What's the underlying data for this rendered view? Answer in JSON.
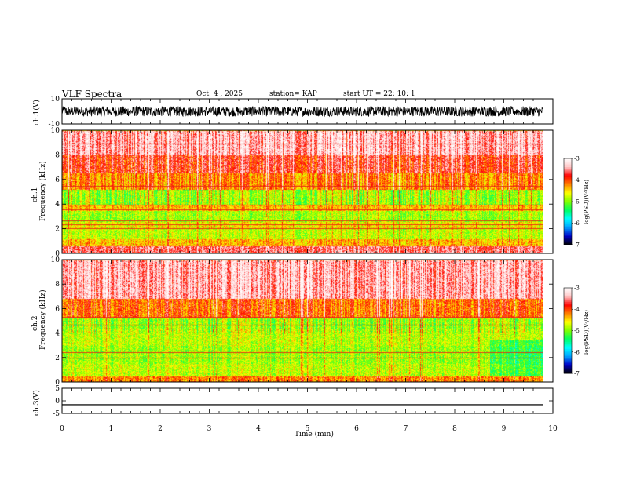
{
  "header": {
    "title": "VLF Spectra",
    "date": "Oct. 4 , 2025",
    "station": "station= KAP",
    "start": "start UT = 22: 10: 1"
  },
  "chart_data": {
    "type": "heatmap",
    "title": "VLF Spectra",
    "xlabel": "Time (min)",
    "xlim": [
      0,
      10
    ],
    "x_ticks": [
      "0",
      "1",
      "2",
      "3",
      "4",
      "5",
      "6",
      "7",
      "8",
      "9",
      "10"
    ],
    "data_end_min": 9.8,
    "panels": [
      {
        "name": "ch1-waveform",
        "type": "line",
        "ylabel": "ch.1(V)",
        "ylim": [
          -10,
          10
        ],
        "y_ticks": [
          "10",
          "-10"
        ],
        "mean": 0,
        "amplitude": 4
      },
      {
        "name": "ch1-spectrogram",
        "type": "heatmap",
        "ylabel_lines": [
          "ch.1",
          "Frequency (kHz)"
        ],
        "ylim": [
          0,
          10
        ],
        "y_ticks": [
          "0",
          "2",
          "4",
          "6",
          "8",
          "10"
        ],
        "bands": [
          {
            "from": 0,
            "to": 0.6,
            "level": -3.6
          },
          {
            "from": 0.6,
            "to": 1.2,
            "level": -4.4
          },
          {
            "from": 1.2,
            "to": 2.0,
            "level": -4.8
          },
          {
            "from": 2.0,
            "to": 2.6,
            "level": -4.6
          },
          {
            "from": 2.6,
            "to": 3.5,
            "level": -4.9
          },
          {
            "from": 3.5,
            "to": 4.0,
            "level": -4.4
          },
          {
            "from": 4.0,
            "to": 5.2,
            "level": -4.9
          },
          {
            "from": 5.2,
            "to": 6.5,
            "level": -4.2
          },
          {
            "from": 6.5,
            "to": 8.0,
            "level": -3.8
          },
          {
            "from": 8.0,
            "to": 10.0,
            "level": -3.4
          }
        ],
        "lines_khz": [
          2.05,
          2.35,
          2.7,
          3.55,
          3.95,
          5.5,
          8.9
        ]
      },
      {
        "name": "ch2-spectrogram",
        "type": "heatmap",
        "ylabel_lines": [
          "ch.2",
          "Frequency (kHz)"
        ],
        "ylim": [
          0,
          10
        ],
        "y_ticks": [
          "0",
          "2",
          "4",
          "6",
          "8",
          "10"
        ],
        "bands": [
          {
            "from": 0,
            "to": 0.5,
            "level": -4.2
          },
          {
            "from": 0.5,
            "to": 1.5,
            "level": -4.8
          },
          {
            "from": 1.5,
            "to": 3.0,
            "level": -4.9
          },
          {
            "from": 3.0,
            "to": 4.3,
            "level": -4.8
          },
          {
            "from": 4.3,
            "to": 5.2,
            "level": -4.9
          },
          {
            "from": 5.2,
            "to": 6.8,
            "level": -4.1
          },
          {
            "from": 6.8,
            "to": 10.0,
            "level": -3.4
          }
        ],
        "lines_khz": [
          2.0,
          2.45,
          4.65,
          5.3
        ],
        "quiet_region": {
          "t_from": 8.7,
          "t_to": 9.8,
          "f_from": 0.5,
          "f_to": 3.5
        }
      },
      {
        "name": "ch3-waveform",
        "type": "line",
        "ylabel": "ch.3(V)",
        "ylim": [
          -5,
          5
        ],
        "y_ticks": [
          "5",
          "0",
          "-5"
        ],
        "mean": -1.7,
        "amplitude": 0.35
      }
    ],
    "colorbar": {
      "label": "log(PSD)(V²/Hz)",
      "range": [
        -7,
        -3
      ],
      "ticks": [
        "-3",
        "-4",
        "-5",
        "-6",
        "-7"
      ],
      "colors": [
        "#000000",
        "#0000c8",
        "#00a0ff",
        "#00ffff",
        "#00ff60",
        "#80ff00",
        "#ffff00",
        "#ff8000",
        "#ff0000",
        "#ffc8c8",
        "#ffffff"
      ]
    }
  }
}
